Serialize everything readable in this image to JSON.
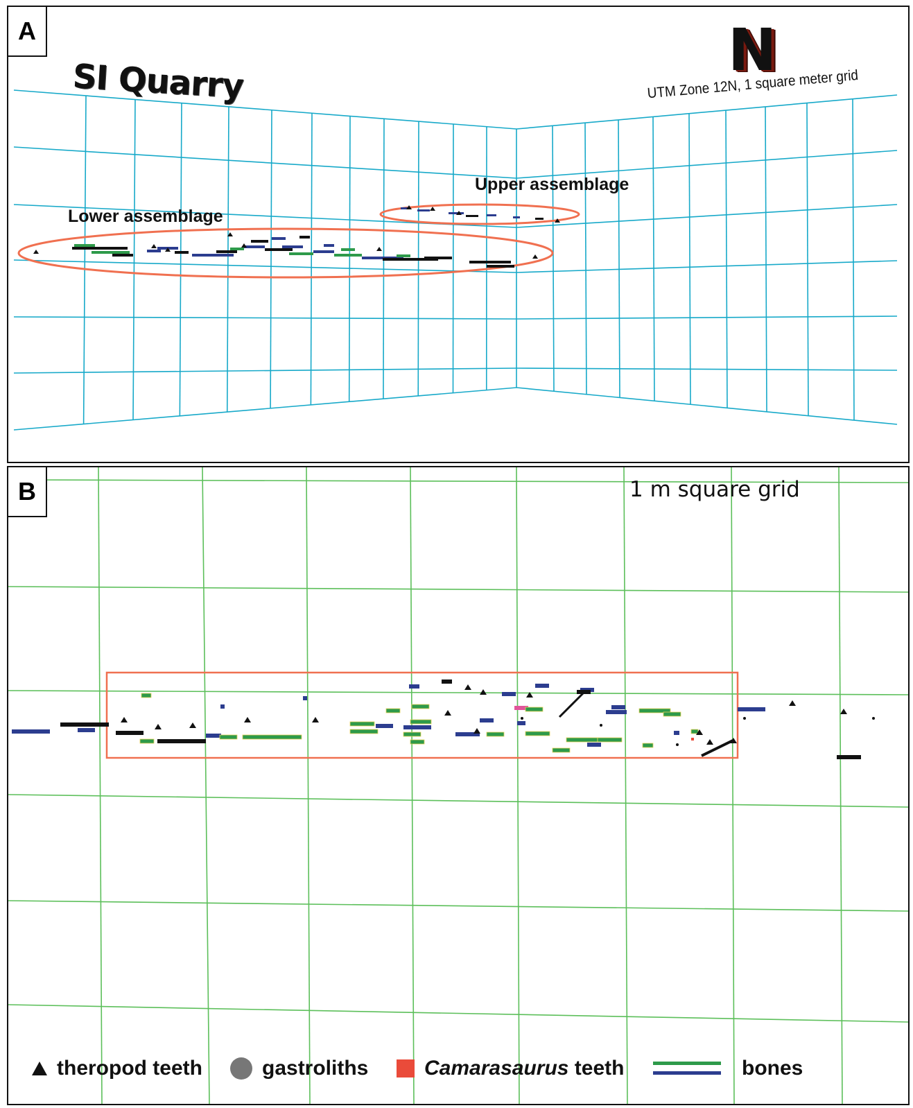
{
  "panel_a": {
    "letter": "A",
    "site_title": "SI Quarry",
    "north_label": "N",
    "grid_caption": "UTM Zone 12N, 1 square meter grid",
    "upper_label": "Upper assemblage",
    "lower_label": "Lower assemblage"
  },
  "panel_b": {
    "letter": "B",
    "grid_note": "1 m square grid"
  },
  "legend": {
    "theropod": "theropod teeth",
    "gastroliths": "gastroliths",
    "camarasaurus_genus": "Camarasaurus",
    "camarasaurus_rest": " teeth",
    "bones": "bones"
  },
  "colors": {
    "grid_a": "#17a9c9",
    "grid_b": "#5cbf5a",
    "ellipse": "#f07050",
    "bone_green": "#2e9a4a",
    "bone_blue": "#2c3d8f",
    "bone_black": "#111111",
    "camarasaurus": "#ea4b3a",
    "gastrolith": "#777777",
    "camarasaurus_pink": "#e0559a"
  }
}
